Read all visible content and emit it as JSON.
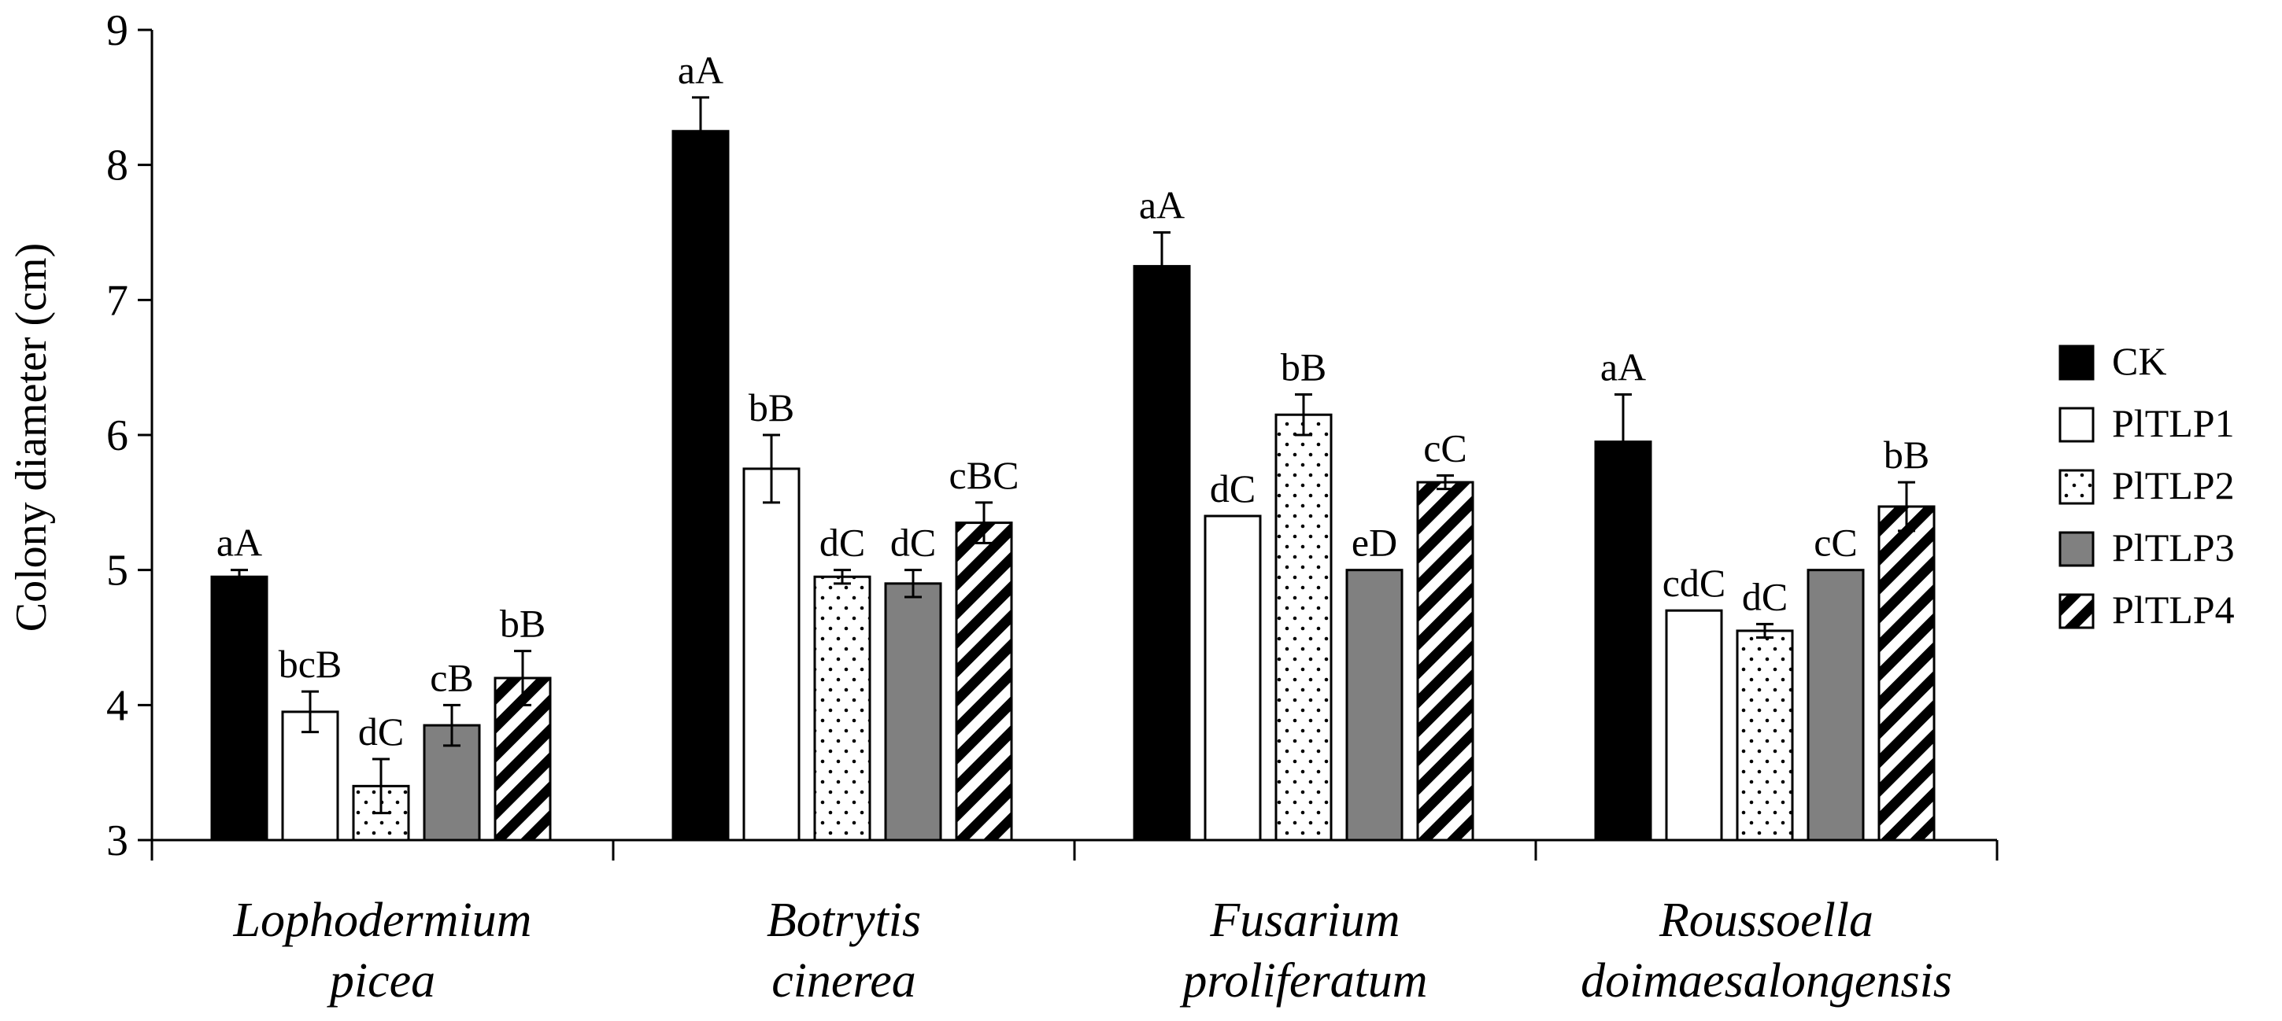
{
  "chart_data": {
    "type": "bar",
    "ylabel": "Colony diameter (cm)",
    "ylim": [
      3,
      9
    ],
    "yticks": [
      3,
      4,
      5,
      6,
      7,
      8,
      9
    ],
    "grid": false,
    "legend_position": "right",
    "categories": [
      [
        "Lophodermium",
        "picea"
      ],
      [
        "Botrytis",
        "cinerea"
      ],
      [
        "Fusarium",
        "proliferatum"
      ],
      [
        "Roussoella",
        "doimaesalongensis"
      ]
    ],
    "series": [
      {
        "name": "CK",
        "pattern": "solid-black",
        "values": [
          4.95,
          8.25,
          7.25,
          5.95
        ],
        "errors": [
          0.05,
          0.25,
          0.25,
          0.35
        ],
        "labels": [
          "aA",
          "aA",
          "aA",
          "aA"
        ]
      },
      {
        "name": "PlTLP1",
        "pattern": "white",
        "values": [
          3.95,
          5.75,
          5.4,
          4.7
        ],
        "errors": [
          0.15,
          0.25,
          0,
          0
        ],
        "labels": [
          "bcB",
          "bB",
          "dC",
          "cdC"
        ]
      },
      {
        "name": "PlTLP2",
        "pattern": "dotted",
        "values": [
          3.4,
          4.95,
          6.15,
          4.55
        ],
        "errors": [
          0.2,
          0.05,
          0.15,
          0.05
        ],
        "labels": [
          "dC",
          "dC",
          "bB",
          "dC"
        ]
      },
      {
        "name": "PlTLP3",
        "pattern": "gray",
        "values": [
          3.85,
          4.9,
          5.0,
          5.0
        ],
        "errors": [
          0.15,
          0.1,
          0,
          0
        ],
        "labels": [
          "cB",
          "dC",
          "eD",
          "cC"
        ]
      },
      {
        "name": "PlTLP4",
        "pattern": "diagonal-hatch",
        "values": [
          4.2,
          5.35,
          5.65,
          5.47
        ],
        "errors": [
          0.2,
          0.15,
          0.05,
          0.18
        ],
        "labels": [
          "bB",
          "cBC",
          "cC",
          "bB"
        ]
      }
    ],
    "colors": {
      "black": "#000000",
      "gray": "#808080",
      "white": "#ffffff"
    }
  }
}
